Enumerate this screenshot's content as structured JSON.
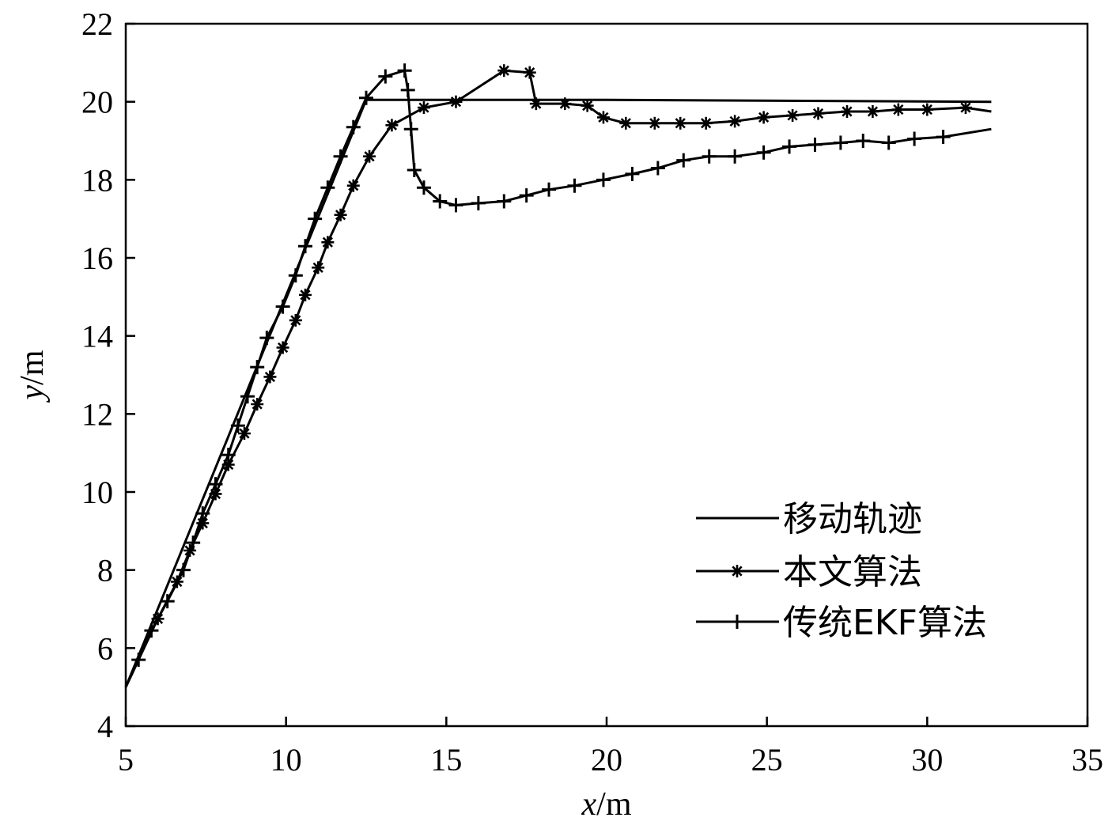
{
  "chart_data": {
    "type": "line",
    "xlabel_var": "x",
    "xlabel_unit": "/m",
    "ylabel_var": "y",
    "ylabel_unit": "/m",
    "xlim": [
      5,
      35
    ],
    "ylim": [
      4,
      22
    ],
    "xticks": [
      5,
      10,
      15,
      20,
      25,
      30,
      35
    ],
    "yticks": [
      4,
      6,
      8,
      10,
      12,
      14,
      16,
      18,
      20,
      22
    ],
    "grid": false,
    "legend_position": "bottom-right",
    "series": [
      {
        "name": "移动轨迹",
        "marker": "none",
        "points": [
          [
            5,
            5
          ],
          [
            12.5,
            20.05
          ],
          [
            20,
            20.05
          ],
          [
            32,
            20
          ]
        ]
      },
      {
        "name": "本文算法",
        "marker": "asterisk",
        "points": [
          [
            5,
            5
          ],
          [
            6.0,
            6.75
          ],
          [
            6.6,
            7.7
          ],
          [
            7.0,
            8.5
          ],
          [
            7.4,
            9.2
          ],
          [
            7.8,
            9.95
          ],
          [
            8.2,
            10.7
          ],
          [
            8.7,
            11.5
          ],
          [
            9.1,
            12.25
          ],
          [
            9.5,
            12.95
          ],
          [
            9.9,
            13.7
          ],
          [
            10.3,
            14.4
          ],
          [
            10.6,
            15.05
          ],
          [
            11.0,
            15.75
          ],
          [
            11.3,
            16.4
          ],
          [
            11.7,
            17.1
          ],
          [
            12.1,
            17.85
          ],
          [
            12.6,
            18.6
          ],
          [
            13.3,
            19.4
          ],
          [
            14.3,
            19.85
          ],
          [
            15.3,
            20.0
          ],
          [
            16.8,
            20.8
          ],
          [
            17.6,
            20.75
          ],
          [
            17.8,
            19.95
          ],
          [
            18.7,
            19.95
          ],
          [
            19.4,
            19.9
          ],
          [
            19.9,
            19.6
          ],
          [
            20.6,
            19.45
          ],
          [
            21.5,
            19.45
          ],
          [
            22.3,
            19.45
          ],
          [
            23.1,
            19.45
          ],
          [
            24.0,
            19.5
          ],
          [
            24.9,
            19.6
          ],
          [
            25.8,
            19.65
          ],
          [
            26.6,
            19.7
          ],
          [
            27.5,
            19.75
          ],
          [
            28.3,
            19.75
          ],
          [
            29.1,
            19.8
          ],
          [
            30.0,
            19.8
          ],
          [
            31.2,
            19.85
          ],
          [
            32,
            19.75
          ]
        ]
      },
      {
        "name": "传统EKF算法",
        "marker": "plus",
        "points": [
          [
            5,
            5
          ],
          [
            5.4,
            5.7
          ],
          [
            5.8,
            6.45
          ],
          [
            6.3,
            7.2
          ],
          [
            6.8,
            8.0
          ],
          [
            7.1,
            8.7
          ],
          [
            7.4,
            9.45
          ],
          [
            7.8,
            10.2
          ],
          [
            8.2,
            10.95
          ],
          [
            8.5,
            11.7
          ],
          [
            8.8,
            12.45
          ],
          [
            9.1,
            13.2
          ],
          [
            9.4,
            13.95
          ],
          [
            9.9,
            14.75
          ],
          [
            10.3,
            15.55
          ],
          [
            10.6,
            16.3
          ],
          [
            10.9,
            17.0
          ],
          [
            11.3,
            17.8
          ],
          [
            11.7,
            18.6
          ],
          [
            12.1,
            19.35
          ],
          [
            12.5,
            20.1
          ],
          [
            13.1,
            20.65
          ],
          [
            13.7,
            20.8
          ],
          [
            13.8,
            20.3
          ],
          [
            13.9,
            19.3
          ],
          [
            14.0,
            18.25
          ],
          [
            14.3,
            17.8
          ],
          [
            14.8,
            17.45
          ],
          [
            15.3,
            17.35
          ],
          [
            16.0,
            17.4
          ],
          [
            16.8,
            17.45
          ],
          [
            17.5,
            17.6
          ],
          [
            18.2,
            17.75
          ],
          [
            19.0,
            17.85
          ],
          [
            19.9,
            18.0
          ],
          [
            20.8,
            18.15
          ],
          [
            21.6,
            18.3
          ],
          [
            22.4,
            18.5
          ],
          [
            23.2,
            18.6
          ],
          [
            24.0,
            18.6
          ],
          [
            24.9,
            18.7
          ],
          [
            25.7,
            18.85
          ],
          [
            26.5,
            18.9
          ],
          [
            27.3,
            18.95
          ],
          [
            28.0,
            19.0
          ],
          [
            28.8,
            18.95
          ],
          [
            29.6,
            19.05
          ],
          [
            30.5,
            19.1
          ],
          [
            32,
            19.3
          ]
        ]
      }
    ]
  }
}
